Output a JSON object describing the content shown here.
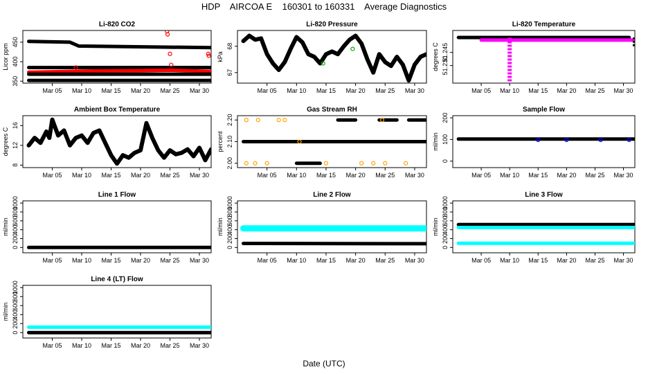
{
  "title": "HDP    AIRCOA E    160301 to 160331    Average Diagnostics",
  "footer": "Date (UTC)",
  "colors": {
    "black": "#000000",
    "red": "#ff0000",
    "magenta": "#ff00ff",
    "green": "#00aa00",
    "orange": "#ffa500",
    "blue": "#0000ff",
    "cyan": "#00ffff"
  },
  "x_axis": {
    "label": "Date (UTC)",
    "day_range": [
      0,
      32
    ],
    "ticks": [
      {
        "day": 5,
        "label": "Mar 05"
      },
      {
        "day": 10,
        "label": "Mar 10"
      },
      {
        "day": 15,
        "label": "Mar 15"
      },
      {
        "day": 20,
        "label": "Mar 20"
      },
      {
        "day": 25,
        "label": "Mar 25"
      },
      {
        "day": 30,
        "label": "Mar 30"
      }
    ]
  },
  "chart_data": [
    {
      "id": "co2",
      "type": "scatter",
      "title": "Li-820 CO2",
      "ylabel": "Licor ppm",
      "ylim": [
        345,
        480
      ],
      "yticks": [
        350,
        400,
        450
      ],
      "series": [
        {
          "name": "upper",
          "color": "#000000",
          "kind": "band",
          "y": [
            [
              1,
              452
            ],
            [
              8,
              450
            ],
            [
              9.5,
              440
            ],
            [
              32,
              436
            ]
          ]
        },
        {
          "name": "level-2",
          "color": "#000000",
          "kind": "band",
          "y": [
            [
              1,
              385
            ],
            [
              32,
              385
            ]
          ]
        },
        {
          "name": "red",
          "color": "#ff0000",
          "kind": "band",
          "y": [
            [
              1,
              373
            ],
            [
              12,
              376
            ],
            [
              20,
              377
            ],
            [
              25,
              378
            ],
            [
              32,
              375
            ]
          ]
        },
        {
          "name": "level-3",
          "color": "#000000",
          "kind": "band",
          "y": [
            [
              1,
              368
            ],
            [
              32,
              368
            ]
          ]
        },
        {
          "name": "bottom",
          "color": "#000000",
          "kind": "band",
          "y": [
            [
              1,
              352
            ],
            [
              32,
              352
            ]
          ]
        },
        {
          "name": "red-outliers",
          "color": "#ff0000",
          "kind": "rings",
          "y": [
            [
              9,
              385
            ],
            [
              24.5,
              478
            ],
            [
              24.6,
              470
            ],
            [
              25,
              420
            ],
            [
              25.2,
              392
            ],
            [
              31.5,
              420
            ],
            [
              31.6,
              415
            ]
          ]
        }
      ]
    },
    {
      "id": "pressure",
      "type": "line",
      "title": "Li-820 Pressure",
      "ylabel": "kPa",
      "ylim": [
        66.6,
        68.6
      ],
      "yticks": [
        67.0,
        68.0
      ],
      "series": [
        {
          "name": "pressure",
          "color": "#000000",
          "kind": "thick",
          "y": [
            [
              1,
              68.2
            ],
            [
              2,
              68.4
            ],
            [
              3,
              68.25
            ],
            [
              4,
              68.3
            ],
            [
              5,
              67.7
            ],
            [
              6,
              67.35
            ],
            [
              7,
              67.1
            ],
            [
              8,
              67.4
            ],
            [
              9,
              67.9
            ],
            [
              10,
              68.35
            ],
            [
              11,
              68.15
            ],
            [
              12,
              67.7
            ],
            [
              13,
              67.6
            ],
            [
              14,
              67.35
            ],
            [
              15,
              67.7
            ],
            [
              16,
              67.8
            ],
            [
              17,
              67.7
            ],
            [
              18,
              68.0
            ],
            [
              19,
              68.25
            ],
            [
              20,
              68.4
            ],
            [
              21,
              68.1
            ],
            [
              22,
              67.5
            ],
            [
              23,
              67.0
            ],
            [
              24,
              67.7
            ],
            [
              25,
              67.4
            ],
            [
              26,
              67.25
            ],
            [
              27,
              67.6
            ],
            [
              28,
              67.3
            ],
            [
              29,
              66.7
            ],
            [
              30,
              67.3
            ],
            [
              31,
              67.6
            ],
            [
              32,
              67.7
            ]
          ]
        },
        {
          "name": "pressure-green",
          "color": "#00aa00",
          "kind": "rings",
          "y": [
            [
              14.5,
              67.35
            ],
            [
              19.5,
              67.9
            ]
          ]
        }
      ]
    },
    {
      "id": "temperature",
      "type": "scatter",
      "title": "Li-820 Temperature",
      "ylabel": "degrees C",
      "ylim": [
        51.21,
        51.27
      ],
      "yticks": [
        51.23,
        51.245
      ],
      "ytick_labels": [
        "51.230",
        "51.245"
      ],
      "series": [
        {
          "name": "temp-top",
          "color": "#000000",
          "kind": "band",
          "y": [
            [
              1,
              51.262
            ],
            [
              31,
              51.262
            ]
          ]
        },
        {
          "name": "temp-magenta",
          "color": "#ff00ff",
          "kind": "band",
          "y": [
            [
              5,
              51.259
            ],
            [
              32,
              51.259
            ]
          ]
        },
        {
          "name": "spike",
          "color": "#ff00ff",
          "kind": "spike",
          "y": [
            [
              10,
              51.212
            ],
            [
              10,
              51.262
            ]
          ]
        },
        {
          "name": "temp-end",
          "color": "#000000",
          "kind": "spike",
          "y": [
            [
              32,
              51.252
            ],
            [
              32,
              51.262
            ]
          ]
        }
      ]
    },
    {
      "id": "ambient",
      "type": "line",
      "title": "Ambient Box Temperature",
      "ylabel": "degrees C",
      "ylim": [
        7.5,
        18
      ],
      "yticks": [
        8,
        12,
        16
      ],
      "series": [
        {
          "name": "ambient",
          "color": "#000000",
          "kind": "thick",
          "y": [
            [
              1,
              12
            ],
            [
              2,
              13.5
            ],
            [
              3,
              12.5
            ],
            [
              4,
              14.8
            ],
            [
              4.5,
              13.5
            ],
            [
              5,
              17.2
            ],
            [
              6,
              14
            ],
            [
              7,
              15
            ],
            [
              8,
              12
            ],
            [
              9,
              13.5
            ],
            [
              10,
              14
            ],
            [
              11,
              12.5
            ],
            [
              12,
              14.5
            ],
            [
              13,
              15
            ],
            [
              14,
              12.5
            ],
            [
              15,
              10
            ],
            [
              16,
              8.3
            ],
            [
              17,
              10
            ],
            [
              18,
              9.5
            ],
            [
              19,
              10.5
            ],
            [
              20,
              11
            ],
            [
              21,
              16.5
            ],
            [
              22,
              13.5
            ],
            [
              23,
              11
            ],
            [
              24,
              9.5
            ],
            [
              25,
              11
            ],
            [
              26,
              10.2
            ],
            [
              27,
              10.5
            ],
            [
              28,
              11.2
            ],
            [
              29,
              9.8
            ],
            [
              30,
              11.5
            ],
            [
              31,
              9
            ],
            [
              32,
              11.2
            ]
          ]
        }
      ]
    },
    {
      "id": "gasrh",
      "type": "scatter",
      "title": "Gas Stream RH",
      "ylabel": "percent",
      "ylim": [
        1.98,
        2.22
      ],
      "yticks": [
        2.0,
        2.1,
        2.2
      ],
      "ytick_labels": [
        "2.00",
        "2.10",
        "2.20"
      ],
      "series": [
        {
          "name": "rh-mid",
          "color": "#000000",
          "kind": "band",
          "y": [
            [
              1,
              2.1
            ],
            [
              32,
              2.1
            ]
          ]
        },
        {
          "name": "rh-top",
          "color": "#000000",
          "kind": "segments",
          "y": [
            [
              17,
              2.2
            ],
            [
              20,
              2.2
            ],
            [
              24,
              2.2
            ],
            [
              27,
              2.2
            ],
            [
              29,
              2.2
            ],
            [
              32,
              2.2
            ]
          ]
        },
        {
          "name": "rh-bottom",
          "color": "#000000",
          "kind": "segments",
          "y": [
            [
              10,
              2.0
            ],
            [
              14,
              2.0
            ]
          ]
        },
        {
          "name": "rh-orange",
          "color": "#ffa500",
          "kind": "rings",
          "y": [
            [
              1.5,
              2.2
            ],
            [
              3.5,
              2.2
            ],
            [
              7,
              2.2
            ],
            [
              8,
              2.2
            ],
            [
              1.5,
              2.0
            ],
            [
              3,
              2.0
            ],
            [
              5,
              2.0
            ],
            [
              10.5,
              2.1
            ],
            [
              15,
              2.0
            ],
            [
              21,
              2.0
            ],
            [
              23,
              2.0
            ],
            [
              25,
              2.0
            ],
            [
              28.5,
              2.0
            ],
            [
              24.5,
              2.2
            ]
          ]
        }
      ]
    },
    {
      "id": "sample",
      "type": "scatter",
      "title": "Sample Flow",
      "ylabel": "ml/min",
      "ylim": [
        -30,
        210
      ],
      "yticks": [
        0,
        100,
        200
      ],
      "series": [
        {
          "name": "sample",
          "color": "#000000",
          "kind": "band",
          "y": [
            [
              1,
              102
            ],
            [
              32,
              102
            ]
          ]
        },
        {
          "name": "sample-blue",
          "color": "#0000ff",
          "kind": "rings",
          "y": [
            [
              15,
              98
            ],
            [
              20,
              98
            ],
            [
              26,
              98
            ],
            [
              31,
              98
            ]
          ]
        }
      ]
    },
    {
      "id": "line1",
      "type": "scatter",
      "title": "Line 1 Flow",
      "ylabel": "ml/min",
      "ylim": [
        -120,
        1050
      ],
      "yticks": [
        0,
        200,
        400,
        600,
        800,
        1000
      ],
      "series": [
        {
          "name": "line1",
          "color": "#000000",
          "kind": "band",
          "y": [
            [
              1,
              0
            ],
            [
              32,
              0
            ]
          ]
        }
      ]
    },
    {
      "id": "line2",
      "type": "scatter",
      "title": "Line 2 Flow",
      "ylabel": "ml/min",
      "ylim": [
        -120,
        1050
      ],
      "yticks": [
        0,
        200,
        400,
        600,
        800,
        1000
      ],
      "series": [
        {
          "name": "line2-cyan",
          "color": "#00ffff",
          "kind": "wideband",
          "y": [
            [
              1,
              430
            ],
            [
              32,
              430
            ]
          ]
        },
        {
          "name": "line2-black",
          "color": "#000000",
          "kind": "band",
          "y": [
            [
              1,
              90
            ],
            [
              32,
              85
            ]
          ]
        }
      ]
    },
    {
      "id": "line3",
      "type": "scatter",
      "title": "Line 3 Flow",
      "ylabel": "ml/min",
      "ylim": [
        -120,
        1050
      ],
      "yticks": [
        0,
        200,
        400,
        600,
        800,
        1000
      ],
      "series": [
        {
          "name": "line3-black",
          "color": "#000000",
          "kind": "band",
          "y": [
            [
              1,
              515
            ],
            [
              32,
              515
            ]
          ]
        },
        {
          "name": "line3-cyan-upper",
          "color": "#00ffff",
          "kind": "band",
          "y": [
            [
              1,
              450
            ],
            [
              32,
              450
            ]
          ]
        },
        {
          "name": "line3-cyan-lower",
          "color": "#00ffff",
          "kind": "band",
          "y": [
            [
              1,
              95
            ],
            [
              32,
              95
            ]
          ]
        }
      ]
    },
    {
      "id": "line4",
      "type": "scatter",
      "title": "Line 4 (LT) Flow",
      "ylabel": "ml/min",
      "ylim": [
        -120,
        1050
      ],
      "yticks": [
        0,
        200,
        400,
        600,
        800,
        1000
      ],
      "series": [
        {
          "name": "line4-cyan",
          "color": "#00ffff",
          "kind": "band",
          "y": [
            [
              1,
              120
            ],
            [
              32,
              120
            ]
          ]
        },
        {
          "name": "line4-black",
          "color": "#000000",
          "kind": "band",
          "y": [
            [
              1,
              0
            ],
            [
              32,
              0
            ]
          ]
        }
      ]
    }
  ]
}
